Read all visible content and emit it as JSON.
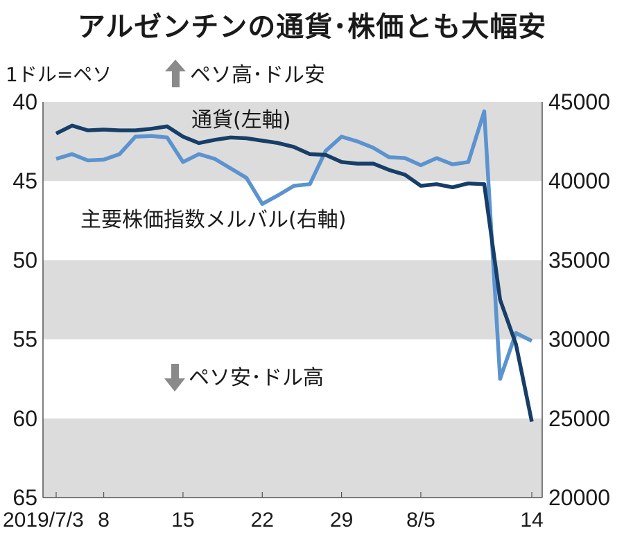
{
  "title": "アルゼンチンの通貨･株価とも大幅安",
  "left_unit_label": "1ドル=ペソ",
  "annotations": {
    "up": "ペソ高･ドル安",
    "down": "ペソ安･ドル高",
    "currency_label": "通貨(左軸)",
    "stock_label": "主要株価指数メルバル(右軸)"
  },
  "colors": {
    "currency": "#163e68",
    "stock": "#5b93cf",
    "band": "#dcdcdc",
    "arrow": "#8a8a8a"
  },
  "chart_data": {
    "type": "line",
    "x_tick_labels": [
      "2019/7/3",
      "8",
      "15",
      "22",
      "29",
      "8/5",
      "14"
    ],
    "left_axis": {
      "ylim": [
        40,
        65
      ],
      "ticks": [
        "40",
        "45",
        "50",
        "55",
        "60",
        "65"
      ],
      "inverted": true
    },
    "right_axis": {
      "ylim": [
        20000,
        45000
      ],
      "ticks": [
        "45000",
        "40000",
        "35000",
        "30000",
        "25000",
        "20000"
      ]
    },
    "series": [
      {
        "name": "通貨(左軸)",
        "axis": "left",
        "values": [
          42.0,
          41.5,
          41.8,
          41.75,
          41.8,
          41.8,
          41.7,
          41.55,
          42.2,
          42.6,
          42.4,
          42.25,
          42.3,
          42.45,
          42.6,
          42.85,
          43.3,
          43.35,
          43.8,
          43.9,
          43.9,
          44.3,
          44.6,
          45.3,
          45.2,
          45.4,
          45.15,
          45.2,
          52.5,
          55.3,
          60.2
        ]
      },
      {
        "name": "主要株価指数メルバル(右軸)",
        "axis": "right",
        "values": [
          41400,
          41700,
          41300,
          41350,
          41700,
          42800,
          42850,
          42750,
          41200,
          41700,
          41400,
          40800,
          40200,
          38550,
          39100,
          39700,
          39800,
          41900,
          42800,
          42500,
          42100,
          41500,
          41450,
          41000,
          41450,
          41050,
          41200,
          44400,
          27500,
          30400,
          29900
        ]
      }
    ]
  }
}
